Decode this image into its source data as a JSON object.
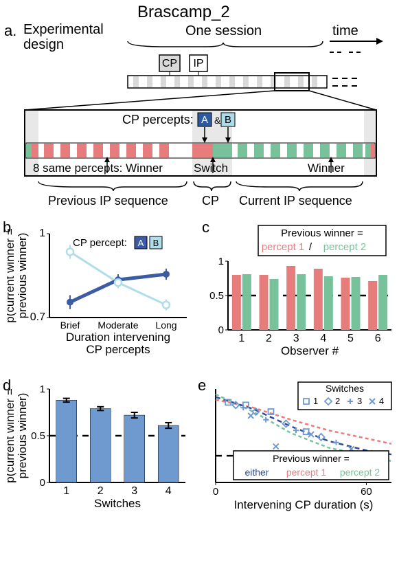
{
  "figure_title": "Brascamp_2",
  "panel_a": {
    "label": "a.",
    "title": "Experimental\ndesign",
    "session_label": "One session",
    "time_label": "time",
    "cp_box": "CP",
    "ip_box": "IP",
    "cp_percepts_label": "CP percepts:",
    "a_box": "A",
    "b_box": "B",
    "winner_label_left": "8 same percepts: Winner",
    "switch_label": "Switch",
    "winner_label_right": "Winner",
    "prev_ip_label": "Previous IP sequence",
    "cp_center_label": "CP",
    "curr_ip_label": "Current IP sequence",
    "colors": {
      "red": "#e77c7c",
      "green": "#77c29a",
      "gray": "#d9d9d9",
      "dark_blue": "#2c5aa0",
      "light_blue": "#aedbe8"
    }
  },
  "panel_b": {
    "label": "b",
    "ylabel": "p(current winner =\nprevious winner)",
    "xlabel": "Duration intervening\nCP percepts",
    "categories": [
      "Brief",
      "Moderate",
      "Long"
    ],
    "series_a": [
      0.755,
      0.835,
      0.855
    ],
    "series_b": [
      0.935,
      0.825,
      0.745
    ],
    "err": [
      0.025,
      0.02,
      0.02
    ],
    "ylim": [
      0.7,
      1.0
    ],
    "legend_label": "CP percept:",
    "legend_a": "A",
    "legend_b": "B",
    "color_a": "#3b5ba5",
    "color_b": "#b0ddea"
  },
  "panel_c": {
    "label": "c",
    "xlabel": "Observer #",
    "legend_title": "Previous winner =",
    "legend_p1": "percept 1",
    "legend_p2": "percept 2",
    "observers": [
      1,
      2,
      3,
      4,
      5,
      6
    ],
    "p1_vals": [
      0.8,
      0.8,
      0.93,
      0.89,
      0.76,
      0.71
    ],
    "p2_vals": [
      0.81,
      0.74,
      0.81,
      0.78,
      0.77,
      0.8
    ],
    "ylim": [
      0,
      1
    ],
    "color_p1": "#e77c7c",
    "color_p2": "#77c29a",
    "ref_line": 0.5
  },
  "panel_d": {
    "label": "d",
    "ylabel": "p(current winner =\nprevious winner)",
    "xlabel": "Switches",
    "categories": [
      1,
      2,
      3,
      4
    ],
    "values": [
      0.88,
      0.79,
      0.72,
      0.61
    ],
    "err": [
      0.02,
      0.02,
      0.03,
      0.03
    ],
    "ylim": [
      0,
      1
    ],
    "color": "#6e9ad0",
    "ref_line": 0.5
  },
  "panel_e": {
    "label": "e",
    "xlabel": "Intervening CP duration (s)",
    "xlim": [
      0,
      70
    ],
    "xticks": [
      0,
      60
    ],
    "ylim": [
      0.3,
      1.0
    ],
    "ref_line": 0.5,
    "legend_switches": "Switches",
    "legend_items": [
      "1",
      "2",
      "3",
      "4"
    ],
    "curve_legend_title": "Previous winner =",
    "curve_either": "either",
    "curve_p1": "percept 1",
    "curve_p2": "percept 2",
    "color_either": "#2e4b9a",
    "color_p1": "#e77c7c",
    "color_p2": "#77c29a",
    "marker_color": "#6e9ad0",
    "points": {
      "s1": [
        [
          5,
          0.9
        ],
        [
          12,
          0.88
        ],
        [
          22,
          0.83
        ],
        [
          36,
          0.68
        ]
      ],
      "s2": [
        [
          8,
          0.88
        ],
        [
          16,
          0.83
        ],
        [
          28,
          0.74
        ],
        [
          42,
          0.64
        ]
      ],
      "s3": [
        [
          11,
          0.86
        ],
        [
          20,
          0.77
        ],
        [
          32,
          0.69
        ],
        [
          48,
          0.6
        ]
      ],
      "s4": [
        [
          14,
          0.8
        ],
        [
          24,
          0.57
        ],
        [
          38,
          0.66
        ],
        [
          54,
          0.55
        ]
      ]
    },
    "curves": {
      "either": [
        [
          0,
          0.94
        ],
        [
          15,
          0.85
        ],
        [
          30,
          0.72
        ],
        [
          45,
          0.61
        ],
        [
          60,
          0.54
        ],
        [
          70,
          0.51
        ]
      ],
      "p1": [
        [
          0,
          0.92
        ],
        [
          15,
          0.86
        ],
        [
          30,
          0.77
        ],
        [
          45,
          0.69
        ],
        [
          60,
          0.63
        ],
        [
          70,
          0.59
        ]
      ],
      "p2": [
        [
          0,
          0.96
        ],
        [
          15,
          0.83
        ],
        [
          30,
          0.67
        ],
        [
          45,
          0.56
        ],
        [
          60,
          0.5
        ],
        [
          70,
          0.46
        ]
      ]
    }
  }
}
